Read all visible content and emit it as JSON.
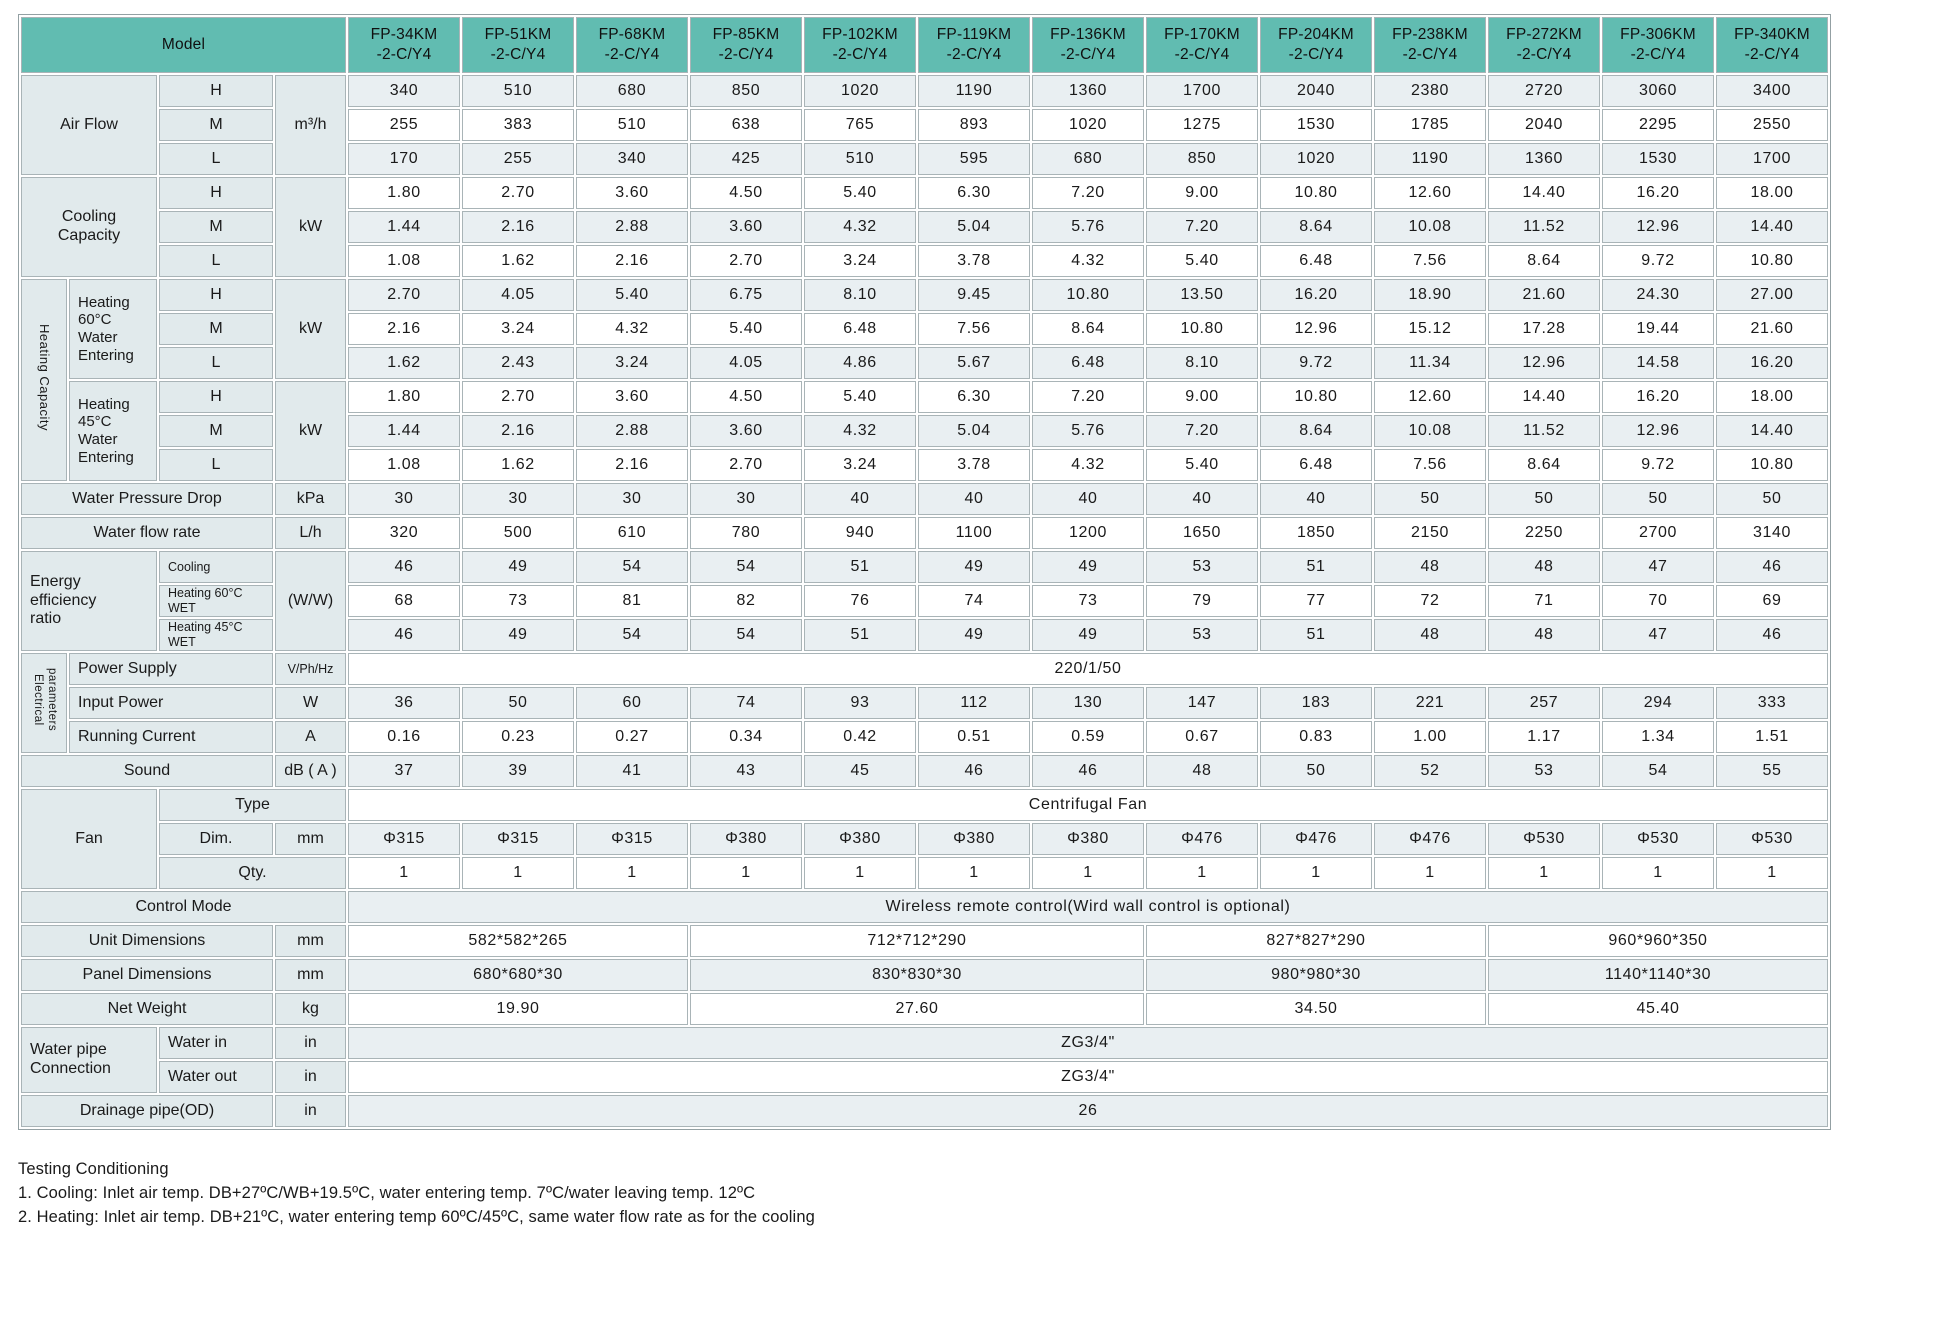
{
  "colors": {
    "header_teal": "#61bcb1",
    "label_bg": "#e1eaec",
    "stripe_bg": "#e9eff2",
    "grid_line": "#a9b4b7"
  },
  "header": {
    "model_label": "Model",
    "models": [
      "FP-34KM\n-2-C/Y4",
      "FP-51KM\n-2-C/Y4",
      "FP-68KM\n-2-C/Y4",
      "FP-85KM\n-2-C/Y4",
      "FP-102KM\n-2-C/Y4",
      "FP-119KM\n-2-C/Y4",
      "FP-136KM\n-2-C/Y4",
      "FP-170KM\n-2-C/Y4",
      "FP-204KM\n-2-C/Y4",
      "FP-238KM\n-2-C/Y4",
      "FP-272KM\n-2-C/Y4",
      "FP-306KM\n-2-C/Y4",
      "FP-340KM\n-2-C/Y4"
    ]
  },
  "labels": {
    "air_flow": "Air Flow",
    "h": "H",
    "m": "M",
    "l": "L",
    "cooling_capacity": "Cooling\nCapacity",
    "heating_capacity": "Heating Capacity",
    "heating60": "Heating\n60°C\nWater\nEntering",
    "heating45": "Heating\n45°C\nWater\nEntering",
    "water_pressure_drop": "Water Pressure Drop",
    "water_flow_rate": "Water flow rate",
    "eer": "Energy\nefficiency\nratio",
    "eer_cooling": "Cooling",
    "eer_h60": "Heating 60°C WET",
    "eer_h45": "Heating 45°C WET",
    "electrical": "Electrical\nparameters",
    "power_supply": "Power Supply",
    "input_power": "Input Power",
    "running_current": "Running Current",
    "sound": "Sound",
    "fan": "Fan",
    "fan_type": "Type",
    "fan_dim": "Dim.",
    "fan_qty": "Qty.",
    "control_mode": "Control Mode",
    "unit_dimensions": "Unit Dimensions",
    "panel_dimensions": "Panel Dimensions",
    "net_weight": "Net Weight",
    "water_pipe": "Water pipe\nConnection",
    "water_in": "Water in",
    "water_out": "Water out",
    "drainage": "Drainage pipe(OD)"
  },
  "units": {
    "air": "m³/h",
    "kw": "kW",
    "kpa": "kPa",
    "lh": "L/h",
    "ww": "(W/W)",
    "vphhz": "V/Ph/Hz",
    "w": "W",
    "a": "A",
    "dba": "dB ( A )",
    "mm": "mm",
    "kg": "kg",
    "inch": "in"
  },
  "rows": {
    "air_h": [
      "340",
      "510",
      "680",
      "850",
      "1020",
      "1190",
      "1360",
      "1700",
      "2040",
      "2380",
      "2720",
      "3060",
      "3400"
    ],
    "air_m": [
      "255",
      "383",
      "510",
      "638",
      "765",
      "893",
      "1020",
      "1275",
      "1530",
      "1785",
      "2040",
      "2295",
      "2550"
    ],
    "air_l": [
      "170",
      "255",
      "340",
      "425",
      "510",
      "595",
      "680",
      "850",
      "1020",
      "1190",
      "1360",
      "1530",
      "1700"
    ],
    "cool_h": [
      "1.80",
      "2.70",
      "3.60",
      "4.50",
      "5.40",
      "6.30",
      "7.20",
      "9.00",
      "10.80",
      "12.60",
      "14.40",
      "16.20",
      "18.00"
    ],
    "cool_m": [
      "1.44",
      "2.16",
      "2.88",
      "3.60",
      "4.32",
      "5.04",
      "5.76",
      "7.20",
      "8.64",
      "10.08",
      "11.52",
      "12.96",
      "14.40"
    ],
    "cool_l": [
      "1.08",
      "1.62",
      "2.16",
      "2.70",
      "3.24",
      "3.78",
      "4.32",
      "5.40",
      "6.48",
      "7.56",
      "8.64",
      "9.72",
      "10.80"
    ],
    "heat60_h": [
      "2.70",
      "4.05",
      "5.40",
      "6.75",
      "8.10",
      "9.45",
      "10.80",
      "13.50",
      "16.20",
      "18.90",
      "21.60",
      "24.30",
      "27.00"
    ],
    "heat60_m": [
      "2.16",
      "3.24",
      "4.32",
      "5.40",
      "6.48",
      "7.56",
      "8.64",
      "10.80",
      "12.96",
      "15.12",
      "17.28",
      "19.44",
      "21.60"
    ],
    "heat60_l": [
      "1.62",
      "2.43",
      "3.24",
      "4.05",
      "4.86",
      "5.67",
      "6.48",
      "8.10",
      "9.72",
      "11.34",
      "12.96",
      "14.58",
      "16.20"
    ],
    "heat45_h": [
      "1.80",
      "2.70",
      "3.60",
      "4.50",
      "5.40",
      "6.30",
      "7.20",
      "9.00",
      "10.80",
      "12.60",
      "14.40",
      "16.20",
      "18.00"
    ],
    "heat45_m": [
      "1.44",
      "2.16",
      "2.88",
      "3.60",
      "4.32",
      "5.04",
      "5.76",
      "7.20",
      "8.64",
      "10.08",
      "11.52",
      "12.96",
      "14.40"
    ],
    "heat45_l": [
      "1.08",
      "1.62",
      "2.16",
      "2.70",
      "3.24",
      "3.78",
      "4.32",
      "5.40",
      "6.48",
      "7.56",
      "8.64",
      "9.72",
      "10.80"
    ],
    "wpd": [
      "30",
      "30",
      "30",
      "30",
      "40",
      "40",
      "40",
      "40",
      "40",
      "50",
      "50",
      "50",
      "50"
    ],
    "wfr": [
      "320",
      "500",
      "610",
      "780",
      "940",
      "1100",
      "1200",
      "1650",
      "1850",
      "2150",
      "2250",
      "2700",
      "3140"
    ],
    "eer_cool": [
      "46",
      "49",
      "54",
      "54",
      "51",
      "49",
      "49",
      "53",
      "51",
      "48",
      "48",
      "47",
      "46"
    ],
    "eer_h60": [
      "68",
      "73",
      "81",
      "82",
      "76",
      "74",
      "73",
      "79",
      "77",
      "72",
      "71",
      "70",
      "69"
    ],
    "eer_h45": [
      "46",
      "49",
      "54",
      "54",
      "51",
      "49",
      "49",
      "53",
      "51",
      "48",
      "48",
      "47",
      "46"
    ],
    "power_supply": "220/1/50",
    "input_power": [
      "36",
      "50",
      "60",
      "74",
      "93",
      "112",
      "130",
      "147",
      "183",
      "221",
      "257",
      "294",
      "333"
    ],
    "running_current": [
      "0.16",
      "0.23",
      "0.27",
      "0.34",
      "0.42",
      "0.51",
      "0.59",
      "0.67",
      "0.83",
      "1.00",
      "1.17",
      "1.34",
      "1.51"
    ],
    "sound": [
      "37",
      "39",
      "41",
      "43",
      "45",
      "46",
      "46",
      "48",
      "50",
      "52",
      "53",
      "54",
      "55"
    ],
    "fan_type": "Centrifugal Fan",
    "fan_dim": [
      "Φ315",
      "Φ315",
      "Φ315",
      "Φ380",
      "Φ380",
      "Φ380",
      "Φ380",
      "Φ476",
      "Φ476",
      "Φ476",
      "Φ530",
      "Φ530",
      "Φ530"
    ],
    "fan_qty": [
      "1",
      "1",
      "1",
      "1",
      "1",
      "1",
      "1",
      "1",
      "1",
      "1",
      "1",
      "1",
      "1"
    ],
    "control_mode": "Wireless remote control(Wird wall control is optional)",
    "unit_dimensions": [
      {
        "t": "582*582*265",
        "s": 3
      },
      {
        "t": "712*712*290",
        "s": 4
      },
      {
        "t": "827*827*290",
        "s": 3
      },
      {
        "t": "960*960*350",
        "s": 3
      }
    ],
    "panel_dimensions": [
      {
        "t": "680*680*30",
        "s": 3
      },
      {
        "t": "830*830*30",
        "s": 4
      },
      {
        "t": "980*980*30",
        "s": 3
      },
      {
        "t": "1140*1140*30",
        "s": 3
      }
    ],
    "net_weight": [
      {
        "t": "19.90",
        "s": 3
      },
      {
        "t": "27.60",
        "s": 4
      },
      {
        "t": "34.50",
        "s": 3
      },
      {
        "t": "45.40",
        "s": 3
      }
    ],
    "water_in_value": "ZG3/4\"",
    "water_out_value": "ZG3/4\"",
    "drainage_value": "26"
  },
  "footer": {
    "title": "Testing Conditioning",
    "note1": "1. Cooling: Inlet air temp. DB+27ºC/WB+19.5ºC, water entering temp. 7ºC/water leaving temp. 12ºC",
    "note2": "2. Heating: Inlet air temp. DB+21ºC, water entering temp 60ºC/45ºC, same water flow rate as for the cooling"
  }
}
